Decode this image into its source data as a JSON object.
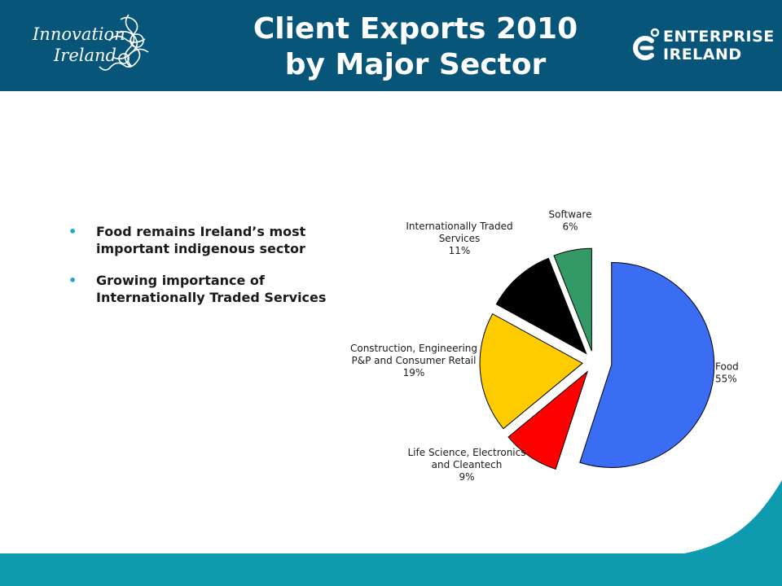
{
  "header": {
    "title_line1": "Client Exports 2010",
    "title_line2": "by Major Sector",
    "logo_left_line1": "Innovation",
    "logo_left_line2": "Ireland",
    "logo_right_line1": "ENTERPRISE",
    "logo_right_line2": "IRELAND"
  },
  "bullets": [
    {
      "line1": "Food remains Ireland’s most",
      "line2": "important indigenous sector"
    },
    {
      "line1": "Growing importance of",
      "line2": "Internationally Traded Services"
    }
  ],
  "colors": {
    "header": "#08557a",
    "footer": "#0e9bb0",
    "bullet": "#22a7c8"
  },
  "chart_data": {
    "type": "pie",
    "exploded": true,
    "slices": [
      {
        "label_lines": [
          "Food"
        ],
        "pct_label": "55%",
        "value": 55,
        "color": "#3a6cf4"
      },
      {
        "label_lines": [
          "Life Science, Electronics",
          "and Cleantech"
        ],
        "pct_label": "9%",
        "value": 9,
        "color": "#ff0000"
      },
      {
        "label_lines": [
          "Construction, Engineering",
          "P&P and Consumer Retail"
        ],
        "pct_label": "19%",
        "value": 19,
        "color": "#ffcc00"
      },
      {
        "label_lines": [
          "Internationally Traded",
          "Services"
        ],
        "pct_label": "11%",
        "value": 11,
        "color": "#000000"
      },
      {
        "label_lines": [
          "Software"
        ],
        "pct_label": "6%",
        "value": 6,
        "color": "#339966"
      }
    ]
  }
}
